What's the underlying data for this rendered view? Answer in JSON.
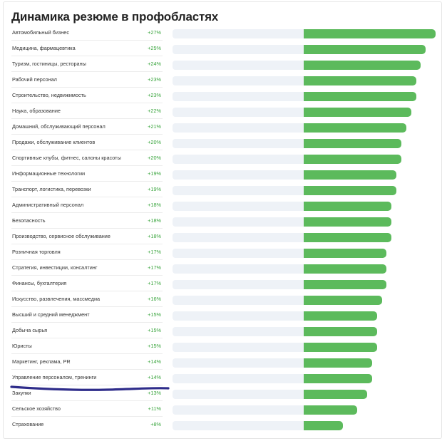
{
  "title": "Динамика резюме в профобластях",
  "colors": {
    "bar": "#5cba5c",
    "track": "#eef2f7",
    "value_text": "#3aa53e",
    "annotation": "#2e2c8a"
  },
  "chart_data": {
    "type": "bar",
    "orientation": "horizontal",
    "title": "Динамика резюме в профобластях",
    "xlim": [
      0,
      27
    ],
    "categories": [
      "Автомобильный бизнес",
      "Медицина, фармацевтика",
      "Туризм, гостиницы, рестораны",
      "Рабочий персонал",
      "Строительство, недвижимость",
      "Наука, образование",
      "Домашний, обслуживающий персонал",
      "Продажи, обслуживание клиентов",
      "Спортивные клубы, фитнес, салоны красоты",
      "Информационные технологии",
      "Транспорт, логистика, перевозки",
      "Административный персонал",
      "Безопасность",
      "Производство, сервисное обслуживание",
      "Розничная торговля",
      "Стратегия, инвестиции, консалтинг",
      "Финансы, бухгалтерия",
      "Искусство, развлечения, массмедиа",
      "Высший и средний менеджмент",
      "Добыча сырья",
      "Юристы",
      "Маркетинг, реклама, PR",
      "Управление персоналом, тренинги",
      "Закупки",
      "Сельское хозяйство",
      "Страхование"
    ],
    "values": [
      27,
      25,
      24,
      23,
      23,
      22,
      21,
      20,
      20,
      19,
      19,
      18,
      18,
      18,
      17,
      17,
      17,
      16,
      15,
      15,
      15,
      14,
      14,
      13,
      11,
      8
    ],
    "value_labels": [
      "+27%",
      "+25%",
      "+24%",
      "+23%",
      "+23%",
      "+22%",
      "+21%",
      "+20%",
      "+20%",
      "+19%",
      "+19%",
      "+18%",
      "+18%",
      "+18%",
      "+17%",
      "+17%",
      "+17%",
      "+16%",
      "+15%",
      "+15%",
      "+15%",
      "+14%",
      "+14%",
      "+13%",
      "+11%",
      "+8%"
    ],
    "annotation": "hand-drawn underline",
    "annotated_category": "Управление персоналом, тренинги"
  }
}
